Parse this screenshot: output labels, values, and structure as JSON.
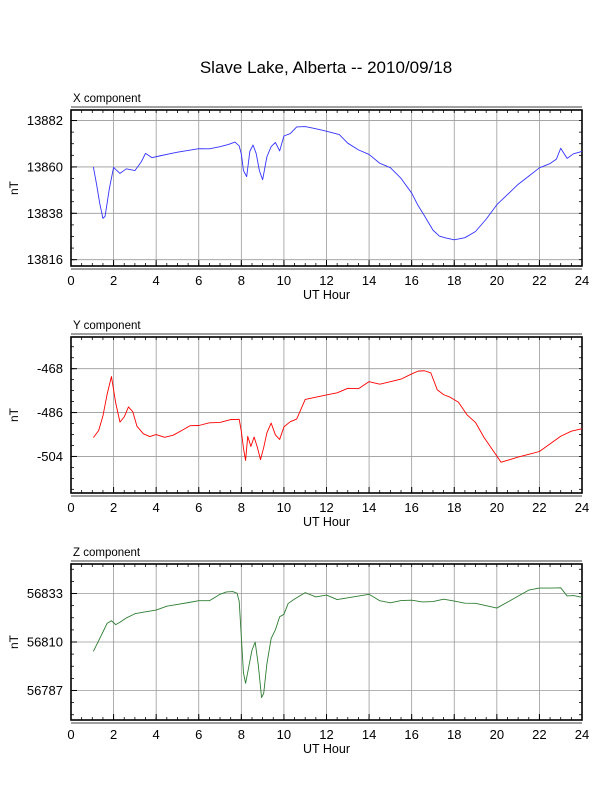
{
  "title": "Slave Lake, Alberta -- 2010/09/18",
  "chart_data": [
    {
      "type": "line",
      "panel_label": "X component",
      "xlabel": "UT Hour",
      "ylabel": "nT",
      "xlim": [
        0,
        24
      ],
      "ylim": [
        13813,
        13887
      ],
      "xticks": [
        "0",
        "2",
        "4",
        "6",
        "8",
        "10",
        "12",
        "14",
        "16",
        "18",
        "20",
        "22",
        "24"
      ],
      "yticks": [
        "13816",
        "13838",
        "13860",
        "13882"
      ],
      "grid": true,
      "series": [
        {
          "color": "#3333ff",
          "x": [
            1.05,
            1.2,
            1.35,
            1.5,
            1.6,
            1.8,
            2.0,
            2.3,
            2.6,
            3.0,
            3.3,
            3.5,
            3.8,
            4.2,
            4.6,
            5.0,
            5.5,
            6.0,
            6.5,
            7.0,
            7.4,
            7.7,
            7.9,
            8.0,
            8.1,
            8.25,
            8.4,
            8.55,
            8.7,
            8.85,
            9.0,
            9.2,
            9.4,
            9.6,
            9.8,
            10.0,
            10.3,
            10.6,
            11.0,
            11.4,
            11.8,
            12.2,
            12.6,
            13.0,
            13.5,
            14.0,
            14.5,
            15.0,
            15.5,
            16.0,
            16.3,
            16.6,
            17.0,
            17.3,
            17.6,
            18.0,
            18.5,
            19.0,
            19.5,
            20.0,
            20.5,
            21.0,
            21.5,
            22.0,
            22.5,
            22.8,
            23.0,
            23.3,
            23.6,
            24.0
          ],
          "y": [
            13860,
            13852,
            13843,
            13836,
            13837,
            13850,
            13860,
            13857,
            13859,
            13858,
            13862,
            13866,
            13864,
            13865,
            13866,
            13867,
            13868,
            13869,
            13869,
            13870,
            13871,
            13872,
            13870,
            13866,
            13858,
            13855,
            13867,
            13870,
            13866,
            13858,
            13854,
            13865,
            13870,
            13872,
            13868,
            13875,
            13876,
            13879,
            13879,
            13878,
            13877,
            13876,
            13875,
            13871,
            13868,
            13866,
            13862,
            13860,
            13855,
            13848,
            13842,
            13837,
            13830,
            13827,
            13826,
            13825,
            13826,
            13829,
            13835,
            13842,
            13847,
            13852,
            13856,
            13860,
            13862,
            13864,
            13869,
            13864,
            13866,
            13867
          ]
        }
      ]
    },
    {
      "type": "line",
      "panel_label": "Y component",
      "xlabel": "UT Hour",
      "ylabel": "nT",
      "xlim": [
        0,
        24
      ],
      "ylim": [
        -519,
        -455
      ],
      "xticks": [
        "0",
        "2",
        "4",
        "6",
        "8",
        "10",
        "12",
        "14",
        "16",
        "18",
        "20",
        "22",
        "24"
      ],
      "yticks": [
        "-468",
        "-486",
        "-504"
      ],
      "grid": true,
      "series": [
        {
          "color": "#ff0000",
          "x": [
            1.05,
            1.3,
            1.5,
            1.7,
            1.9,
            2.1,
            2.3,
            2.5,
            2.7,
            2.9,
            3.1,
            3.4,
            3.7,
            4.0,
            4.4,
            4.8,
            5.2,
            5.6,
            6.0,
            6.5,
            7.0,
            7.5,
            7.9,
            8.0,
            8.1,
            8.2,
            8.3,
            8.45,
            8.6,
            8.75,
            8.9,
            9.05,
            9.2,
            9.4,
            9.6,
            9.8,
            10.0,
            10.3,
            10.6,
            11.0,
            11.5,
            12.0,
            12.5,
            13.0,
            13.5,
            14.0,
            14.5,
            15.0,
            15.5,
            16.0,
            16.3,
            16.6,
            16.9,
            17.2,
            17.5,
            17.8,
            18.2,
            18.6,
            19.0,
            19.4,
            19.8,
            20.2,
            20.6,
            21.0,
            21.5,
            22.0,
            22.5,
            23.0,
            23.5,
            24.0
          ],
          "y": [
            -496,
            -493,
            -487,
            -478,
            -471,
            -482,
            -490,
            -488,
            -484,
            -486,
            -492,
            -495,
            -496,
            -495,
            -496,
            -495,
            -493,
            -491,
            -491,
            -490,
            -490,
            -489,
            -489,
            -494,
            -501,
            -506,
            -496,
            -500,
            -496,
            -500,
            -505,
            -500,
            -494,
            -490,
            -495,
            -497,
            -492,
            -490,
            -489,
            -481,
            -480,
            -479,
            -478,
            -476,
            -476,
            -473,
            -474,
            -473,
            -472,
            -470,
            -469,
            -469,
            -470,
            -477,
            -479,
            -480,
            -482,
            -487,
            -490,
            -496,
            -501,
            -506,
            -505,
            -504,
            -503,
            -502,
            -499,
            -496,
            -494,
            -493
          ]
        }
      ]
    },
    {
      "type": "line",
      "panel_label": "Z component",
      "xlabel": "UT Hour",
      "ylabel": "nT",
      "xlim": [
        0,
        24
      ],
      "ylim": [
        56773,
        56847
      ],
      "xticks": [
        "0",
        "2",
        "4",
        "6",
        "8",
        "10",
        "12",
        "14",
        "16",
        "18",
        "20",
        "22",
        "24"
      ],
      "yticks": [
        "56833",
        "56810",
        "56787"
      ],
      "grid": true,
      "series": [
        {
          "color": "#2e7d32",
          "x": [
            1.05,
            1.25,
            1.5,
            1.7,
            1.9,
            2.1,
            2.3,
            2.6,
            3.0,
            3.5,
            4.0,
            4.5,
            5.0,
            5.5,
            6.0,
            6.5,
            7.0,
            7.3,
            7.6,
            7.8,
            7.9,
            8.0,
            8.1,
            8.2,
            8.35,
            8.5,
            8.65,
            8.8,
            8.95,
            9.05,
            9.2,
            9.4,
            9.6,
            9.8,
            10.0,
            10.2,
            10.5,
            11.0,
            11.5,
            12.0,
            12.5,
            13.0,
            13.5,
            14.0,
            14.5,
            15.0,
            15.5,
            16.0,
            16.5,
            17.0,
            17.5,
            18.0,
            18.5,
            19.0,
            19.5,
            20.0,
            20.5,
            21.0,
            21.5,
            22.0,
            22.5,
            23.0,
            23.3,
            23.6,
            24.0
          ],
          "y": [
            56806,
            56810,
            56815,
            56819,
            56820,
            56818,
            56819,
            56821,
            56823,
            56824,
            56825,
            56827,
            56828,
            56829,
            56830,
            56830,
            56833,
            56834,
            56834,
            56833,
            56829,
            56812,
            56795,
            56790,
            56798,
            56806,
            56810,
            56799,
            56784,
            56786,
            56800,
            56812,
            56816,
            56822,
            56823,
            56828,
            56830,
            56833,
            56831,
            56832,
            56830,
            56831,
            56832,
            56833,
            56830,
            56829,
            56830,
            56830,
            56829,
            56829,
            56830,
            56829,
            56828,
            56828,
            56827,
            56826,
            56829,
            56832,
            56835,
            56836,
            56836,
            56836,
            56832,
            56832,
            56831
          ]
        }
      ]
    }
  ]
}
